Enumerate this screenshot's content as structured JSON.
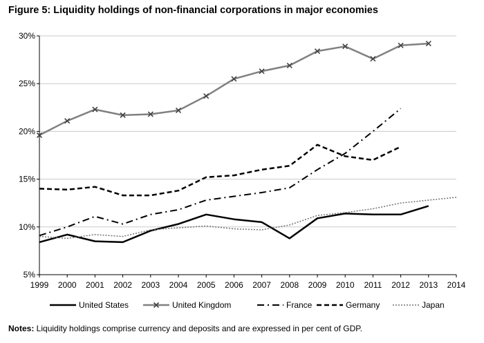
{
  "title": "Figure 5: Liquidity holdings of non-financial corporations in major economies",
  "notes": {
    "label": "Notes:",
    "text": " Liquidity holdings comprise currency and deposits and are expressed in per cent of GDP."
  },
  "chart_data": {
    "type": "line",
    "title": "Figure 5: Liquidity holdings of non-financial corporations in major economies",
    "xlabel": "",
    "ylabel": "",
    "x": [
      1999,
      2000,
      2001,
      2002,
      2003,
      2004,
      2005,
      2006,
      2007,
      2008,
      2009,
      2010,
      2011,
      2012,
      2013,
      2014
    ],
    "xlim": [
      1999,
      2014
    ],
    "ylim": [
      5,
      30
    ],
    "yticks": [
      5,
      10,
      15,
      20,
      25,
      30
    ],
    "ytick_labels": [
      "5%",
      "10%",
      "15%",
      "20%",
      "25%",
      "30%"
    ],
    "xtick_labels": [
      "1999",
      "2000",
      "2001",
      "2002",
      "2003",
      "2004",
      "2005",
      "2006",
      "2007",
      "2008",
      "2009",
      "2010",
      "2011",
      "2012",
      "2013",
      "2014"
    ],
    "grid": "horizontal",
    "legend_position": "bottom",
    "series": [
      {
        "name": "United States",
        "style": "solid-thick",
        "color": "#000000",
        "values": [
          8.4,
          9.2,
          8.5,
          8.4,
          9.6,
          10.3,
          11.3,
          10.8,
          10.5,
          8.8,
          10.9,
          11.4,
          11.3,
          11.3,
          12.2,
          null
        ]
      },
      {
        "name": "United Kingdom",
        "style": "solid-x-markers",
        "color": "#808080",
        "values": [
          19.6,
          21.1,
          22.3,
          21.7,
          21.8,
          22.2,
          23.7,
          25.5,
          26.3,
          26.9,
          28.4,
          28.9,
          27.6,
          29.0,
          29.2,
          null
        ]
      },
      {
        "name": "France",
        "style": "dash-dot",
        "color": "#000000",
        "values": [
          9.1,
          10.0,
          11.1,
          10.3,
          11.3,
          11.8,
          12.8,
          13.2,
          13.6,
          14.1,
          16.0,
          17.7,
          20.0,
          22.4,
          null,
          null
        ]
      },
      {
        "name": "Germany",
        "style": "dashed-thick",
        "color": "#000000",
        "values": [
          14.0,
          13.9,
          14.2,
          13.3,
          13.3,
          13.8,
          15.2,
          15.4,
          16.0,
          16.4,
          18.6,
          17.4,
          17.0,
          18.4,
          null,
          null
        ]
      },
      {
        "name": "Japan",
        "style": "dotted",
        "color": "#707070",
        "values": [
          9.0,
          8.8,
          9.2,
          9.0,
          9.7,
          9.9,
          10.1,
          9.8,
          9.7,
          10.2,
          11.2,
          11.5,
          11.9,
          12.5,
          12.8,
          13.1
        ]
      }
    ]
  }
}
